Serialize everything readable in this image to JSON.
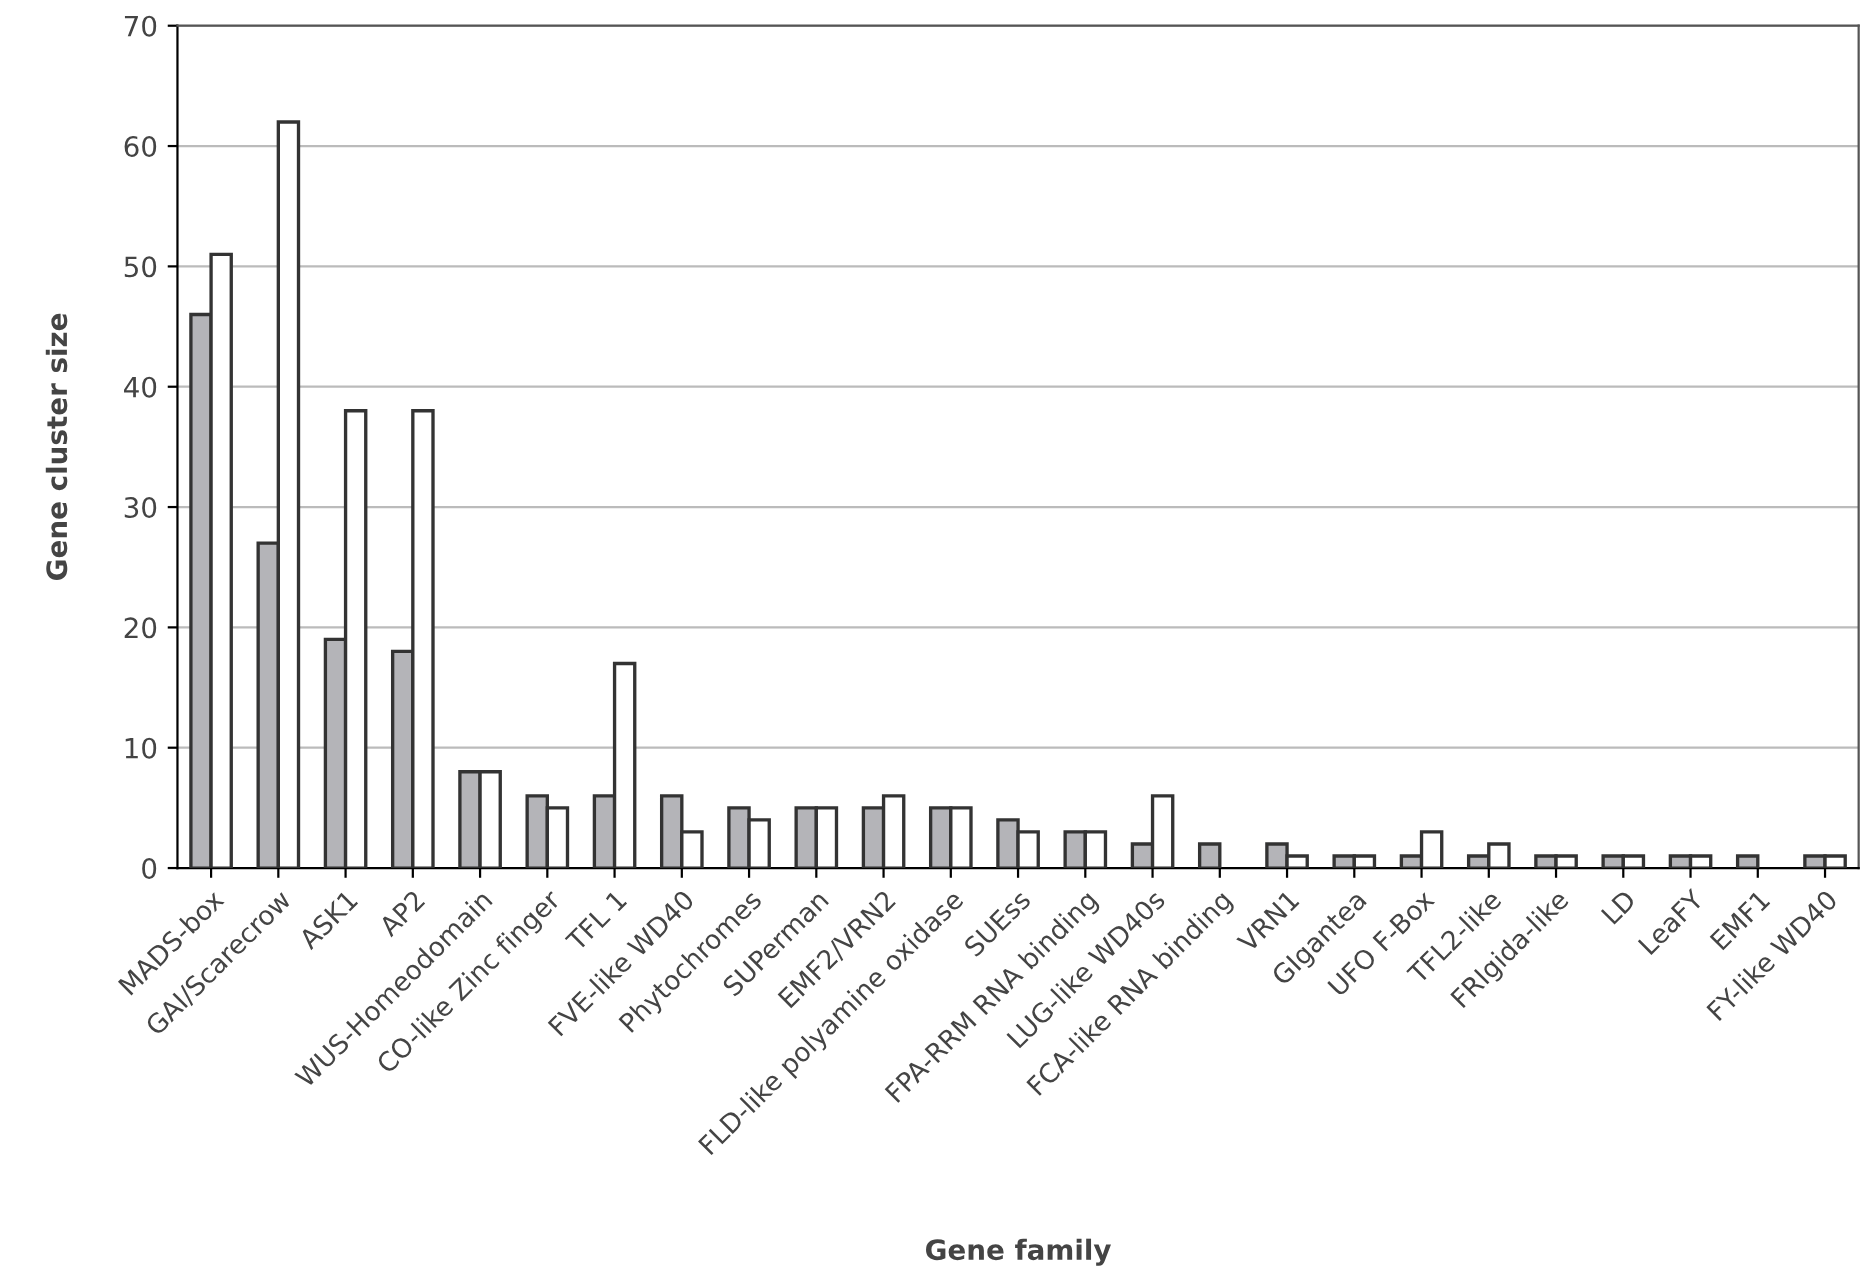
{
  "chart_data": {
    "type": "bar",
    "xlabel": "Gene family",
    "ylabel": "Gene cluster size",
    "categories": [
      "MADS-box",
      "GAI/Scarecrow",
      "ASK1",
      "AP2",
      "WUS-Homeodomain",
      "CO-like Zinc finger",
      "TFL 1",
      "FVE-like WD40",
      "Phytochromes",
      "SUPerman",
      "EMF2/VRN2",
      "FLD-like polyamine oxidase",
      "SUEss",
      "FPA-RRM RNA binding",
      "LUG-like WD40s",
      "FCA-like RNA binding",
      "VRN1",
      "GIgantea",
      "UFO F-Box",
      "TFL2-like",
      "FRIgida-like",
      "LD",
      "LeaFY",
      "EMF1",
      "FY-like WD40"
    ],
    "series": [
      {
        "color": "#b4b4b8",
        "values": [
          46,
          27,
          19,
          18,
          8,
          6,
          6,
          6,
          5,
          5,
          5,
          5,
          4,
          3,
          2,
          2,
          2,
          1,
          1,
          1,
          1,
          1,
          1,
          1,
          1
        ]
      },
      {
        "color": "#ffffff",
        "values": [
          51,
          62,
          38,
          38,
          8,
          5,
          17,
          3,
          4,
          5,
          6,
          5,
          3,
          3,
          6,
          null,
          1,
          1,
          3,
          2,
          1,
          1,
          1,
          null,
          1
        ]
      }
    ],
    "ylim": [
      0,
      70
    ],
    "yticks": [
      0,
      10,
      20,
      30,
      40,
      50,
      60,
      70
    ],
    "grid": "y",
    "legend": false
  }
}
